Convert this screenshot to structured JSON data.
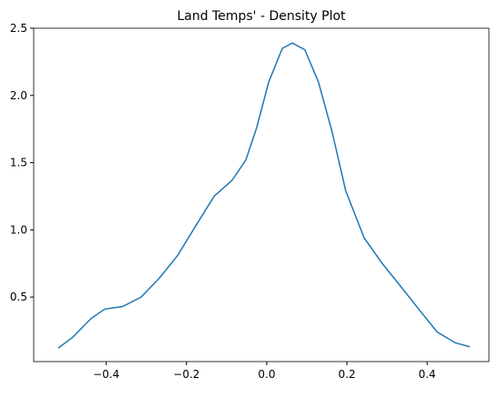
{
  "chart_data": {
    "type": "line",
    "title": "Land Temps' - Density Plot",
    "x": [
      -0.52,
      -0.484,
      -0.438,
      -0.404,
      -0.359,
      -0.313,
      -0.268,
      -0.222,
      -0.177,
      -0.131,
      -0.086,
      -0.052,
      -0.025,
      0.005,
      0.039,
      0.064,
      0.095,
      0.129,
      0.163,
      0.197,
      0.243,
      0.288,
      0.334,
      0.379,
      0.425,
      0.47,
      0.506
    ],
    "series": [
      {
        "color": "#1f77b4",
        "values": [
          0.12,
          0.2,
          0.34,
          0.41,
          0.43,
          0.5,
          0.64,
          0.81,
          1.03,
          1.25,
          1.37,
          1.52,
          1.76,
          2.1,
          2.35,
          2.39,
          2.34,
          2.1,
          1.73,
          1.29,
          0.94,
          0.75,
          0.58,
          0.41,
          0.24,
          0.16,
          0.13
        ]
      }
    ],
    "xlim": [
      -0.581,
      0.554
    ],
    "ylim": [
      0.02,
      2.5
    ],
    "xticks": [
      {
        "value": -0.4,
        "label": "−0.4"
      },
      {
        "value": -0.2,
        "label": "−0.2"
      },
      {
        "value": 0,
        "label": "0.0"
      },
      0.2,
      0.4
    ],
    "yticks": [
      0.5,
      {
        "value": 1,
        "label": "1.0"
      },
      1.5,
      {
        "value": 2,
        "label": "2.0"
      },
      2.5
    ]
  }
}
